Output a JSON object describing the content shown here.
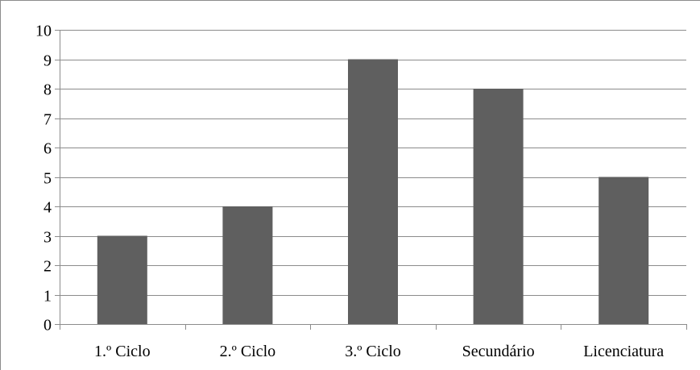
{
  "chart_data": {
    "type": "bar",
    "categories": [
      "1.º Ciclo",
      "2.º Ciclo",
      "3.º Ciclo",
      "Secundário",
      "Licenciatura"
    ],
    "values": [
      3,
      4,
      9,
      8,
      5
    ],
    "title": "",
    "xlabel": "",
    "ylabel": "",
    "ylim": [
      0,
      10
    ],
    "yticks": [
      0,
      1,
      2,
      3,
      4,
      5,
      6,
      7,
      8,
      9,
      10
    ],
    "grid": true,
    "legend": "none",
    "colors": {
      "bar": "#5f5f5f",
      "grid": "#8c8c8c",
      "axis": "#8c8c8c",
      "text": "#000000"
    }
  }
}
